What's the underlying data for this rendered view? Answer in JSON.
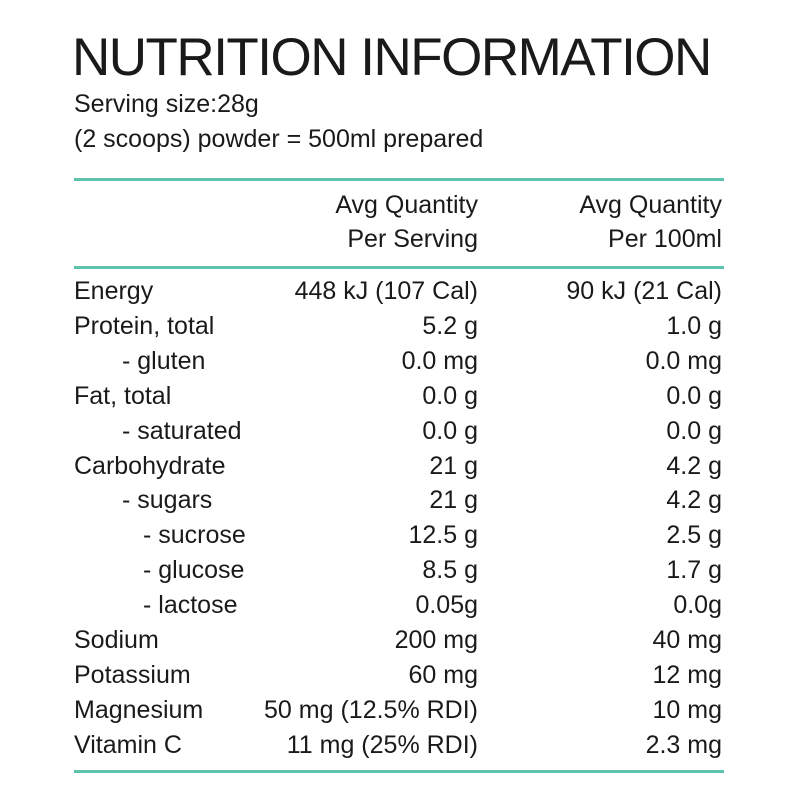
{
  "title": "NUTRITION INFORMATION",
  "serving_size": "Serving size:28g",
  "serving_note": "(2 scoops) powder = 500ml prepared",
  "colors": {
    "rule": "#5cc3ad",
    "text": "#1a1a1a"
  },
  "columns": [
    {
      "line1": "Avg Quantity",
      "line2": "Per Serving"
    },
    {
      "line1": "Avg Quantity",
      "line2": "Per 100ml"
    }
  ],
  "rows": [
    {
      "label": "Energy",
      "indent": 0,
      "per_serving": "448 kJ (107 Cal)",
      "per_100ml": "90 kJ (21 Cal)"
    },
    {
      "label": "Protein, total",
      "indent": 0,
      "per_serving": "5.2 g",
      "per_100ml": "1.0 g"
    },
    {
      "label": "- gluten",
      "indent": 1,
      "per_serving": "0.0 mg",
      "per_100ml": "0.0 mg"
    },
    {
      "label": "Fat, total",
      "indent": 0,
      "per_serving": "0.0 g",
      "per_100ml": "0.0 g"
    },
    {
      "label": "- saturated",
      "indent": 1,
      "per_serving": "0.0 g",
      "per_100ml": "0.0 g"
    },
    {
      "label": "Carbohydrate",
      "indent": 0,
      "per_serving": "21 g",
      "per_100ml": "4.2 g"
    },
    {
      "label": "- sugars",
      "indent": 1,
      "per_serving": "21 g",
      "per_100ml": "4.2 g"
    },
    {
      "label": "- sucrose",
      "indent": 2,
      "per_serving": "12.5 g",
      "per_100ml": "2.5 g"
    },
    {
      "label": "- glucose",
      "indent": 2,
      "per_serving": "8.5 g",
      "per_100ml": "1.7 g"
    },
    {
      "label": "- lactose",
      "indent": 2,
      "per_serving": "0.05g",
      "per_100ml": "0.0g"
    },
    {
      "label": "Sodium",
      "indent": 0,
      "per_serving": "200 mg",
      "per_100ml": "40 mg"
    },
    {
      "label": "Potassium",
      "indent": 0,
      "per_serving": "60 mg",
      "per_100ml": "12 mg"
    },
    {
      "label": "Magnesium",
      "indent": 0,
      "per_serving": "50 mg (12.5% RDI)",
      "per_100ml": "10 mg"
    },
    {
      "label": "Vitamin C",
      "indent": 0,
      "per_serving": "11 mg (25% RDI)",
      "per_100ml": "2.3 mg"
    }
  ]
}
